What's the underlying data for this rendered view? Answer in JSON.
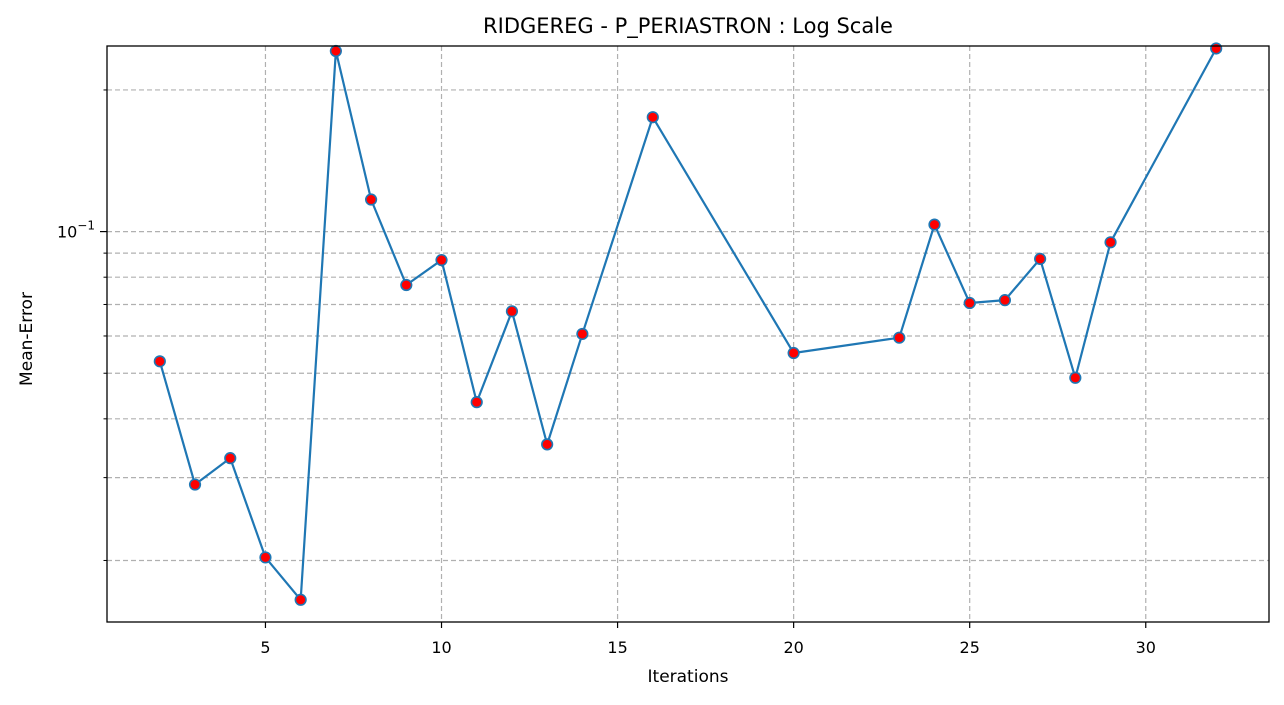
{
  "chart_data": {
    "type": "line",
    "title": "RIDGEREG - P_PERIASTRON : Log Scale",
    "xlabel": "Iterations",
    "ylabel": "Mean-Error",
    "yscale": "log",
    "grid": true,
    "grid_style": "dashed",
    "xlim": [
      0.5,
      33.5
    ],
    "ylim": [
      0.0148,
      0.248
    ],
    "x_ticks": [
      5,
      10,
      15,
      20,
      25,
      30
    ],
    "x_tick_labels": [
      "5",
      "10",
      "15",
      "20",
      "25",
      "30"
    ],
    "y_major_ticks": [
      0.1
    ],
    "y_major_tick_labels": [
      {
        "base": "10",
        "exponent": "−1"
      }
    ],
    "y_minor_ticks": [
      0.02,
      0.03,
      0.04,
      0.05,
      0.06,
      0.07,
      0.08,
      0.09,
      0.2
    ],
    "series": [
      {
        "line_color": "#1f77b4",
        "marker_face_color": "#ff0000",
        "marker_edge_color": "#1f77b4",
        "x": [
          2,
          3,
          4,
          5,
          6,
          7,
          8,
          9,
          10,
          11,
          12,
          13,
          14,
          16,
          20,
          23,
          24,
          25,
          26,
          27,
          28,
          29,
          32
        ],
        "y": [
          0.053,
          0.029,
          0.033,
          0.0203,
          0.0165,
          0.242,
          0.117,
          0.077,
          0.087,
          0.0434,
          0.0677,
          0.0353,
          0.0606,
          0.175,
          0.0552,
          0.0595,
          0.1035,
          0.0705,
          0.0715,
          0.0875,
          0.0489,
          0.0949,
          0.245
        ]
      }
    ]
  }
}
